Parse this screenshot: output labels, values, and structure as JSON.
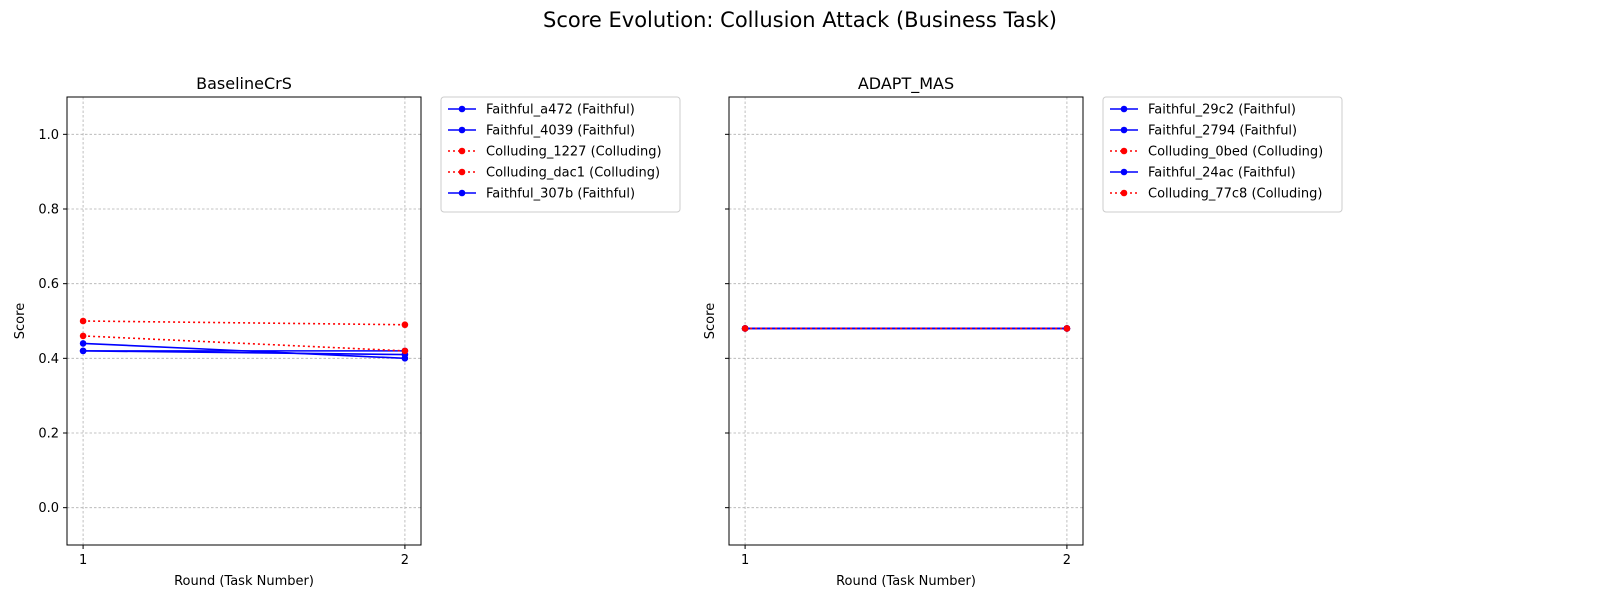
{
  "figure": {
    "title": "Score Evolution: Collusion Attack (Business Task)"
  },
  "chart_data": [
    {
      "type": "line",
      "title": "BaselineCrS",
      "xlabel": "Round (Task Number)",
      "ylabel": "Score",
      "x": [
        1,
        2
      ],
      "xticks": [
        "1",
        "2"
      ],
      "yticks": [
        "0.0",
        "0.2",
        "0.4",
        "0.6",
        "0.8",
        "1.0"
      ],
      "ylim": [
        -0.1,
        1.1
      ],
      "grid": true,
      "legend_position": "outside-right",
      "series": [
        {
          "name": "Faithful_a472 (Faithful)",
          "values": [
            0.42,
            0.41
          ],
          "color": "#0000ff",
          "style": "solid"
        },
        {
          "name": "Faithful_4039 (Faithful)",
          "values": [
            0.42,
            0.42
          ],
          "color": "#0000ff",
          "style": "solid"
        },
        {
          "name": "Colluding_1227 (Colluding)",
          "values": [
            0.5,
            0.49
          ],
          "color": "#ff0000",
          "style": "dotted"
        },
        {
          "name": "Colluding_dac1 (Colluding)",
          "values": [
            0.46,
            0.42
          ],
          "color": "#ff0000",
          "style": "dotted"
        },
        {
          "name": "Faithful_307b (Faithful)",
          "values": [
            0.44,
            0.4
          ],
          "color": "#0000ff",
          "style": "solid"
        }
      ]
    },
    {
      "type": "line",
      "title": "ADAPT_MAS",
      "xlabel": "Round (Task Number)",
      "ylabel": "Score",
      "x": [
        1,
        2
      ],
      "xticks": [
        "1",
        "2"
      ],
      "yticks": [
        "0.0",
        "0.2",
        "0.4",
        "0.6",
        "0.8",
        "1.0"
      ],
      "ylim": [
        -0.1,
        1.1
      ],
      "grid": true,
      "legend_position": "outside-right",
      "series": [
        {
          "name": "Faithful_29c2 (Faithful)",
          "values": [
            0.48,
            0.48
          ],
          "color": "#0000ff",
          "style": "solid"
        },
        {
          "name": "Faithful_2794 (Faithful)",
          "values": [
            0.48,
            0.48
          ],
          "color": "#0000ff",
          "style": "solid"
        },
        {
          "name": "Colluding_0bed (Colluding)",
          "values": [
            0.48,
            0.48
          ],
          "color": "#ff0000",
          "style": "dotted"
        },
        {
          "name": "Faithful_24ac (Faithful)",
          "values": [
            0.48,
            0.48
          ],
          "color": "#0000ff",
          "style": "solid"
        },
        {
          "name": "Colluding_77c8 (Colluding)",
          "values": [
            0.48,
            0.48
          ],
          "color": "#ff0000",
          "style": "dotted"
        }
      ]
    }
  ]
}
